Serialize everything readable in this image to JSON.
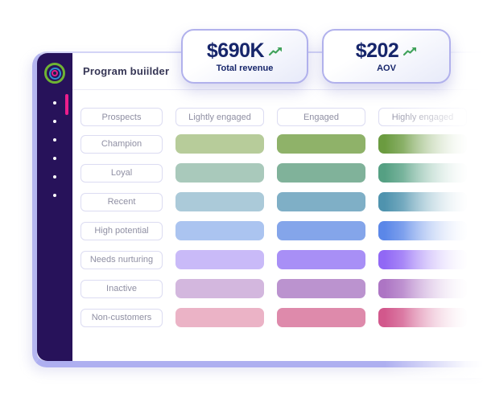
{
  "window": {
    "title": "Program buiilder"
  },
  "sidebar": {
    "logo_icon": "concentric-rings-logo",
    "nav_dots": 6,
    "active_indicator_color": "#ec1e8c",
    "background_color": "#27125a"
  },
  "stat_cards": [
    {
      "value": "$690K",
      "label": "Total revenue",
      "trend_icon": "trend-up-arrow",
      "trend": "up"
    },
    {
      "value": "$202",
      "label": "AOV",
      "trend_icon": "trend-up-arrow",
      "trend": "up"
    }
  ],
  "matrix": {
    "column_headers": [
      "Prospects",
      "Lightly engaged",
      "Engaged",
      "Highly engaged"
    ],
    "rows": [
      {
        "label": "Champion",
        "cell_colors": [
          "#b7cc9a",
          "#8fb269",
          "#6b9b40"
        ]
      },
      {
        "label": "Loyal",
        "cell_colors": [
          "#a9c9bb",
          "#80b29a",
          "#55a083"
        ]
      },
      {
        "label": "Recent",
        "cell_colors": [
          "#abcad9",
          "#7fafc6",
          "#4f93ae"
        ]
      },
      {
        "label": "High potential",
        "cell_colors": [
          "#abc4f0",
          "#84a5ea",
          "#5b87e8"
        ]
      },
      {
        "label": "Needs nurturing",
        "cell_colors": [
          "#c9baf8",
          "#a88ff6",
          "#9168f5"
        ]
      },
      {
        "label": "Inactive",
        "cell_colors": [
          "#d3b7de",
          "#bb93cf",
          "#ad75c4"
        ]
      },
      {
        "label": "Non-customers",
        "cell_colors": [
          "#ebb3c6",
          "#de8aab",
          "#d2588c"
        ]
      }
    ]
  },
  "colors": {
    "card_text_navy": "#17266b",
    "trend_green": "#42a35c",
    "lavender_border": "#b1b1ec",
    "pill_text_gray": "#8f8fa3"
  }
}
